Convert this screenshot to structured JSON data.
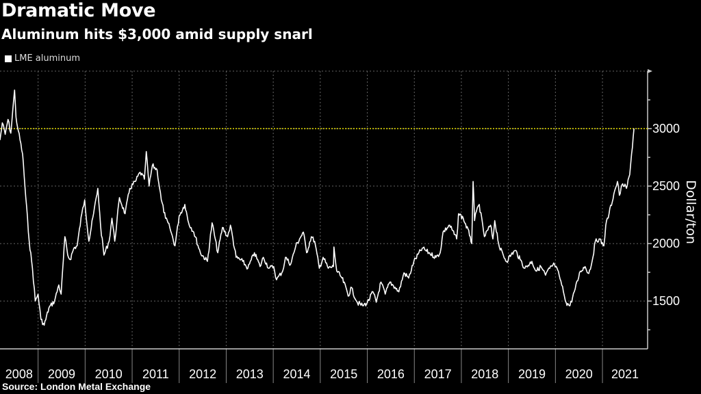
{
  "header": {
    "title": "Dramatic Move",
    "subtitle": "Aluminum hits $3,000 amid supply snarl"
  },
  "footer": {
    "source": "Source: London Metal Exchange"
  },
  "chart_data": {
    "type": "line",
    "title": "Dramatic Move",
    "subtitle": "Aluminum hits $3,000 amid supply snarl",
    "xlabel": "",
    "ylabel": "Dollar/ton",
    "y_axis_side": "right",
    "ylim": [
      1084,
      3500
    ],
    "xlim": [
      2008.19,
      2022.0
    ],
    "y_ticks": [
      1500,
      2000,
      2500,
      3000
    ],
    "y_tick_labels": [
      "1500",
      "2000",
      "2500",
      "3000"
    ],
    "x_tick_labels": [
      "2008",
      "2009",
      "2010",
      "2011",
      "2012",
      "2013",
      "2014",
      "2015",
      "2016",
      "2017",
      "2018",
      "2019",
      "2020",
      "2021"
    ],
    "grid": true,
    "legend": "top-left",
    "colors": {
      "series": "#ffffff",
      "reference": "#e8e000",
      "grid": "#666666",
      "background": "#000000"
    },
    "reference_line": {
      "y": 3000,
      "style": "dotted"
    },
    "series": [
      {
        "name": "LME aluminum",
        "x": [
          2008.19,
          2008.24,
          2008.3,
          2008.36,
          2008.42,
          2008.46,
          2008.5,
          2008.53,
          2008.58,
          2008.67,
          2008.72,
          2008.81,
          2008.88,
          2008.94,
          2009.0,
          2009.06,
          2009.13,
          2009.23,
          2009.35,
          2009.44,
          2009.49,
          2009.57,
          2009.63,
          2009.68,
          2009.76,
          2009.83,
          2009.93,
          2009.99,
          2010.08,
          2010.18,
          2010.27,
          2010.33,
          2010.4,
          2010.51,
          2010.57,
          2010.63,
          2010.73,
          2010.85,
          2010.95,
          2011.07,
          2011.17,
          2011.26,
          2011.3,
          2011.36,
          2011.43,
          2011.53,
          2011.62,
          2011.71,
          2011.8,
          2011.91,
          2012.0,
          2012.12,
          2012.2,
          2012.31,
          2012.45,
          2012.6,
          2012.7,
          2012.82,
          2012.92,
          2013.03,
          2013.09,
          2013.21,
          2013.35,
          2013.46,
          2013.6,
          2013.72,
          2013.79,
          2013.91,
          2014.01,
          2014.07,
          2014.2,
          2014.26,
          2014.37,
          2014.48,
          2014.56,
          2014.64,
          2014.71,
          2014.81,
          2014.88,
          2014.98,
          2015.06,
          2015.17,
          2015.28,
          2015.29,
          2015.35,
          2015.46,
          2015.61,
          2015.65,
          2015.79,
          2015.9,
          2016.0,
          2016.12,
          2016.19,
          2016.29,
          2016.38,
          2016.48,
          2016.59,
          2016.67,
          2016.78,
          2016.88,
          2016.99,
          2017.17,
          2017.31,
          2017.46,
          2017.55,
          2017.61,
          2017.75,
          2017.9,
          2017.94,
          2018.04,
          2018.19,
          2018.22,
          2018.25,
          2018.28,
          2018.32,
          2018.38,
          2018.49,
          2018.62,
          2018.67,
          2018.71,
          2018.81,
          2018.96,
          2019.06,
          2019.15,
          2019.25,
          2019.35,
          2019.5,
          2019.59,
          2019.69,
          2019.79,
          2019.88,
          2019.98,
          2020.08,
          2020.17,
          2020.23,
          2020.31,
          2020.42,
          2020.53,
          2020.63,
          2020.71,
          2020.78,
          2020.85,
          2020.93,
          2021.03,
          2021.07,
          2021.14,
          2021.26,
          2021.32,
          2021.36,
          2021.43,
          2021.51,
          2021.58,
          2021.62,
          2021.67
        ],
        "y": [
          2900,
          3050,
          2950,
          3080,
          2960,
          3150,
          3335,
          3100,
          2980,
          2780,
          2500,
          2024,
          1785,
          1500,
          1560,
          1340,
          1290,
          1440,
          1500,
          1640,
          1560,
          2060,
          1900,
          1860,
          1960,
          1980,
          2260,
          2380,
          2020,
          2260,
          2480,
          2150,
          1900,
          2020,
          2220,
          2020,
          2400,
          2260,
          2480,
          2540,
          2620,
          2560,
          2800,
          2500,
          2680,
          2640,
          2380,
          2220,
          2140,
          1980,
          2240,
          2340,
          2180,
          2100,
          1920,
          1845,
          2180,
          1920,
          2140,
          2060,
          2160,
          1880,
          1845,
          1785,
          1920,
          1800,
          1880,
          1785,
          1800,
          1685,
          1760,
          1880,
          1820,
          1980,
          2040,
          2100,
          1920,
          2060,
          2020,
          1785,
          1880,
          1785,
          1800,
          1970,
          1760,
          1700,
          1545,
          1620,
          1485,
          1460,
          1485,
          1580,
          1490,
          1665,
          1560,
          1665,
          1620,
          1580,
          1745,
          1700,
          1845,
          1960,
          1920,
          1880,
          1920,
          2100,
          2160,
          2040,
          2260,
          2220,
          2060,
          2000,
          2540,
          2200,
          2280,
          2340,
          2060,
          2160,
          2040,
          2200,
          1965,
          1845,
          1905,
          1940,
          1860,
          1785,
          1845,
          1760,
          1800,
          1725,
          1785,
          1820,
          1725,
          1580,
          1485,
          1460,
          1605,
          1760,
          1800,
          1740,
          1845,
          2020,
          2040,
          1980,
          2160,
          2260,
          2460,
          2540,
          2420,
          2520,
          2480,
          2600,
          2780,
          3000
        ]
      }
    ]
  }
}
